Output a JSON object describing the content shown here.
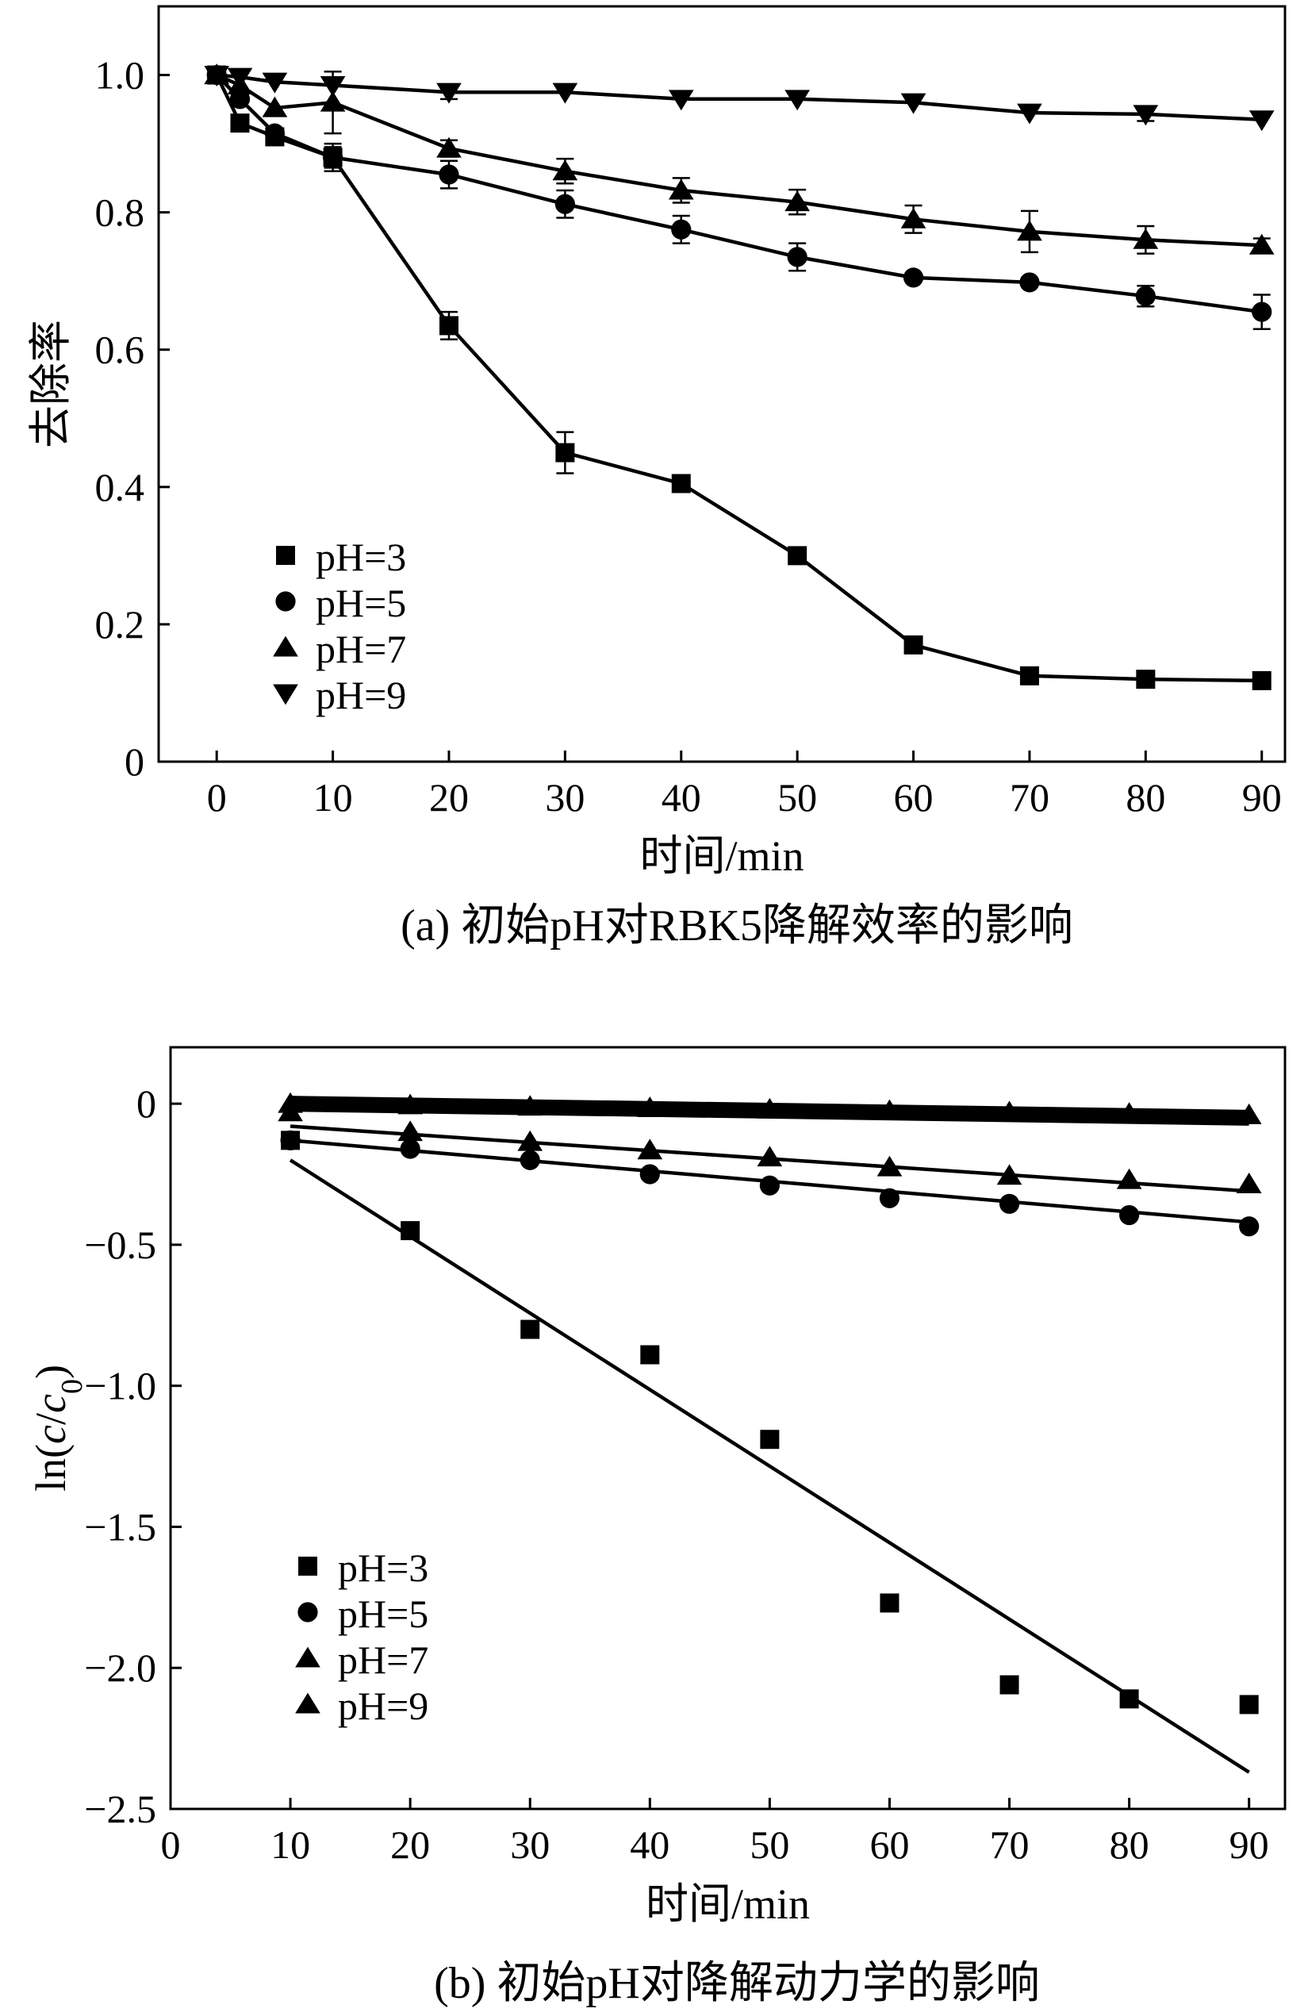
{
  "chart_data": [
    {
      "type": "line",
      "caption": "(a) 初始pH对RBK5降解效率的影响",
      "xlabel": "时间/min",
      "ylabel": "去除率",
      "xlim": [
        -5,
        92
      ],
      "ylim": [
        0,
        1.1
      ],
      "xticks": [
        "0",
        "10",
        "20",
        "30",
        "40",
        "50",
        "60",
        "70",
        "80",
        "90"
      ],
      "yticks": [
        "0",
        "0.2",
        "0.4",
        "0.6",
        "0.8",
        "1.0"
      ],
      "legend_position": "bottom-left",
      "series": [
        {
          "name": "pH=3",
          "marker": "square",
          "x": [
            0,
            2,
            5,
            10,
            20,
            30,
            40,
            50,
            60,
            70,
            80,
            90
          ],
          "y": [
            1.0,
            0.93,
            0.91,
            0.88,
            0.635,
            0.45,
            0.405,
            0.3,
            0.17,
            0.125,
            0.12,
            0.118
          ],
          "err": [
            0,
            0,
            0,
            0.02,
            0.02,
            0.03,
            0,
            0,
            0,
            0,
            0,
            0
          ]
        },
        {
          "name": "pH=5",
          "marker": "circle",
          "x": [
            0,
            2,
            5,
            10,
            20,
            30,
            40,
            50,
            60,
            70,
            80,
            90
          ],
          "y": [
            1.0,
            0.965,
            0.915,
            0.88,
            0.855,
            0.812,
            0.775,
            0.735,
            0.705,
            0.698,
            0.678,
            0.655
          ],
          "err": [
            0,
            0,
            0,
            0.015,
            0.02,
            0.02,
            0.02,
            0.02,
            0,
            0,
            0.015,
            0.025
          ]
        },
        {
          "name": "pH=7",
          "marker": "triangle-up",
          "x": [
            0,
            2,
            5,
            10,
            20,
            30,
            40,
            50,
            60,
            70,
            80,
            90
          ],
          "y": [
            1.0,
            0.985,
            0.952,
            0.96,
            0.893,
            0.86,
            0.832,
            0.815,
            0.79,
            0.772,
            0.76,
            0.752
          ],
          "err": [
            0,
            0,
            0,
            0.045,
            0.012,
            0.018,
            0.018,
            0.018,
            0.02,
            0.03,
            0.02,
            0.01
          ]
        },
        {
          "name": "pH=9",
          "marker": "triangle-down",
          "x": [
            0,
            2,
            5,
            10,
            20,
            30,
            40,
            50,
            60,
            70,
            80,
            90
          ],
          "y": [
            1.0,
            0.997,
            0.99,
            0.985,
            0.975,
            0.975,
            0.965,
            0.965,
            0.96,
            0.945,
            0.943,
            0.935
          ],
          "err": [
            0,
            0,
            0,
            0,
            0.01,
            0,
            0,
            0,
            0,
            0,
            0.01,
            0
          ]
        }
      ]
    },
    {
      "type": "scatter",
      "caption": "(b) 初始pH对降解动力学的影响",
      "xlabel": "时间/min",
      "ylabel": "ln(c/c0)",
      "ylabel_parts": [
        "ln(",
        "c",
        "/",
        "c",
        "0",
        ")"
      ],
      "xlim": [
        0,
        93
      ],
      "ylim": [
        -2.5,
        0.2
      ],
      "xticks": [
        "0",
        "10",
        "20",
        "30",
        "40",
        "50",
        "60",
        "70",
        "80",
        "90"
      ],
      "yticks": [
        "0",
        "−0.5",
        "−1.0",
        "−1.5",
        "−2.0",
        "−2.5"
      ],
      "legend_position": "bottom-left",
      "series": [
        {
          "name": "pH=3",
          "marker": "square",
          "x": [
            10,
            20,
            30,
            40,
            50,
            60,
            70,
            80,
            90
          ],
          "y": [
            -0.13,
            -0.45,
            -0.8,
            -0.89,
            -1.19,
            -1.77,
            -2.06,
            -2.11,
            -2.13
          ],
          "fit": [
            [
              10,
              -0.2
            ],
            [
              90,
              -2.37
            ]
          ]
        },
        {
          "name": "pH=5",
          "marker": "circle",
          "x": [
            10,
            20,
            30,
            40,
            50,
            60,
            70,
            80,
            90
          ],
          "y": [
            -0.13,
            -0.16,
            -0.2,
            -0.25,
            -0.29,
            -0.335,
            -0.355,
            -0.395,
            -0.435
          ],
          "fit": [
            [
              10,
              -0.13
            ],
            [
              90,
              -0.42
            ]
          ]
        },
        {
          "name": "pH=7",
          "marker": "triangle-up",
          "x": [
            10,
            20,
            30,
            40,
            50,
            60,
            70,
            80,
            90
          ],
          "y": [
            -0.03,
            -0.1,
            -0.135,
            -0.165,
            -0.19,
            -0.225,
            -0.255,
            -0.27,
            -0.285
          ],
          "fit": [
            [
              10,
              -0.08
            ],
            [
              90,
              -0.31
            ]
          ]
        },
        {
          "name": "pH=9",
          "marker": "triangle-up",
          "x": [
            10,
            20,
            30,
            40,
            50,
            60,
            70,
            80,
            90
          ],
          "y": [
            0,
            -0.005,
            -0.01,
            -0.015,
            -0.02,
            -0.025,
            -0.03,
            -0.035,
            -0.04
          ],
          "fit": [
            [
              10,
              0.0
            ],
            [
              90,
              -0.05
            ]
          ]
        }
      ]
    }
  ]
}
